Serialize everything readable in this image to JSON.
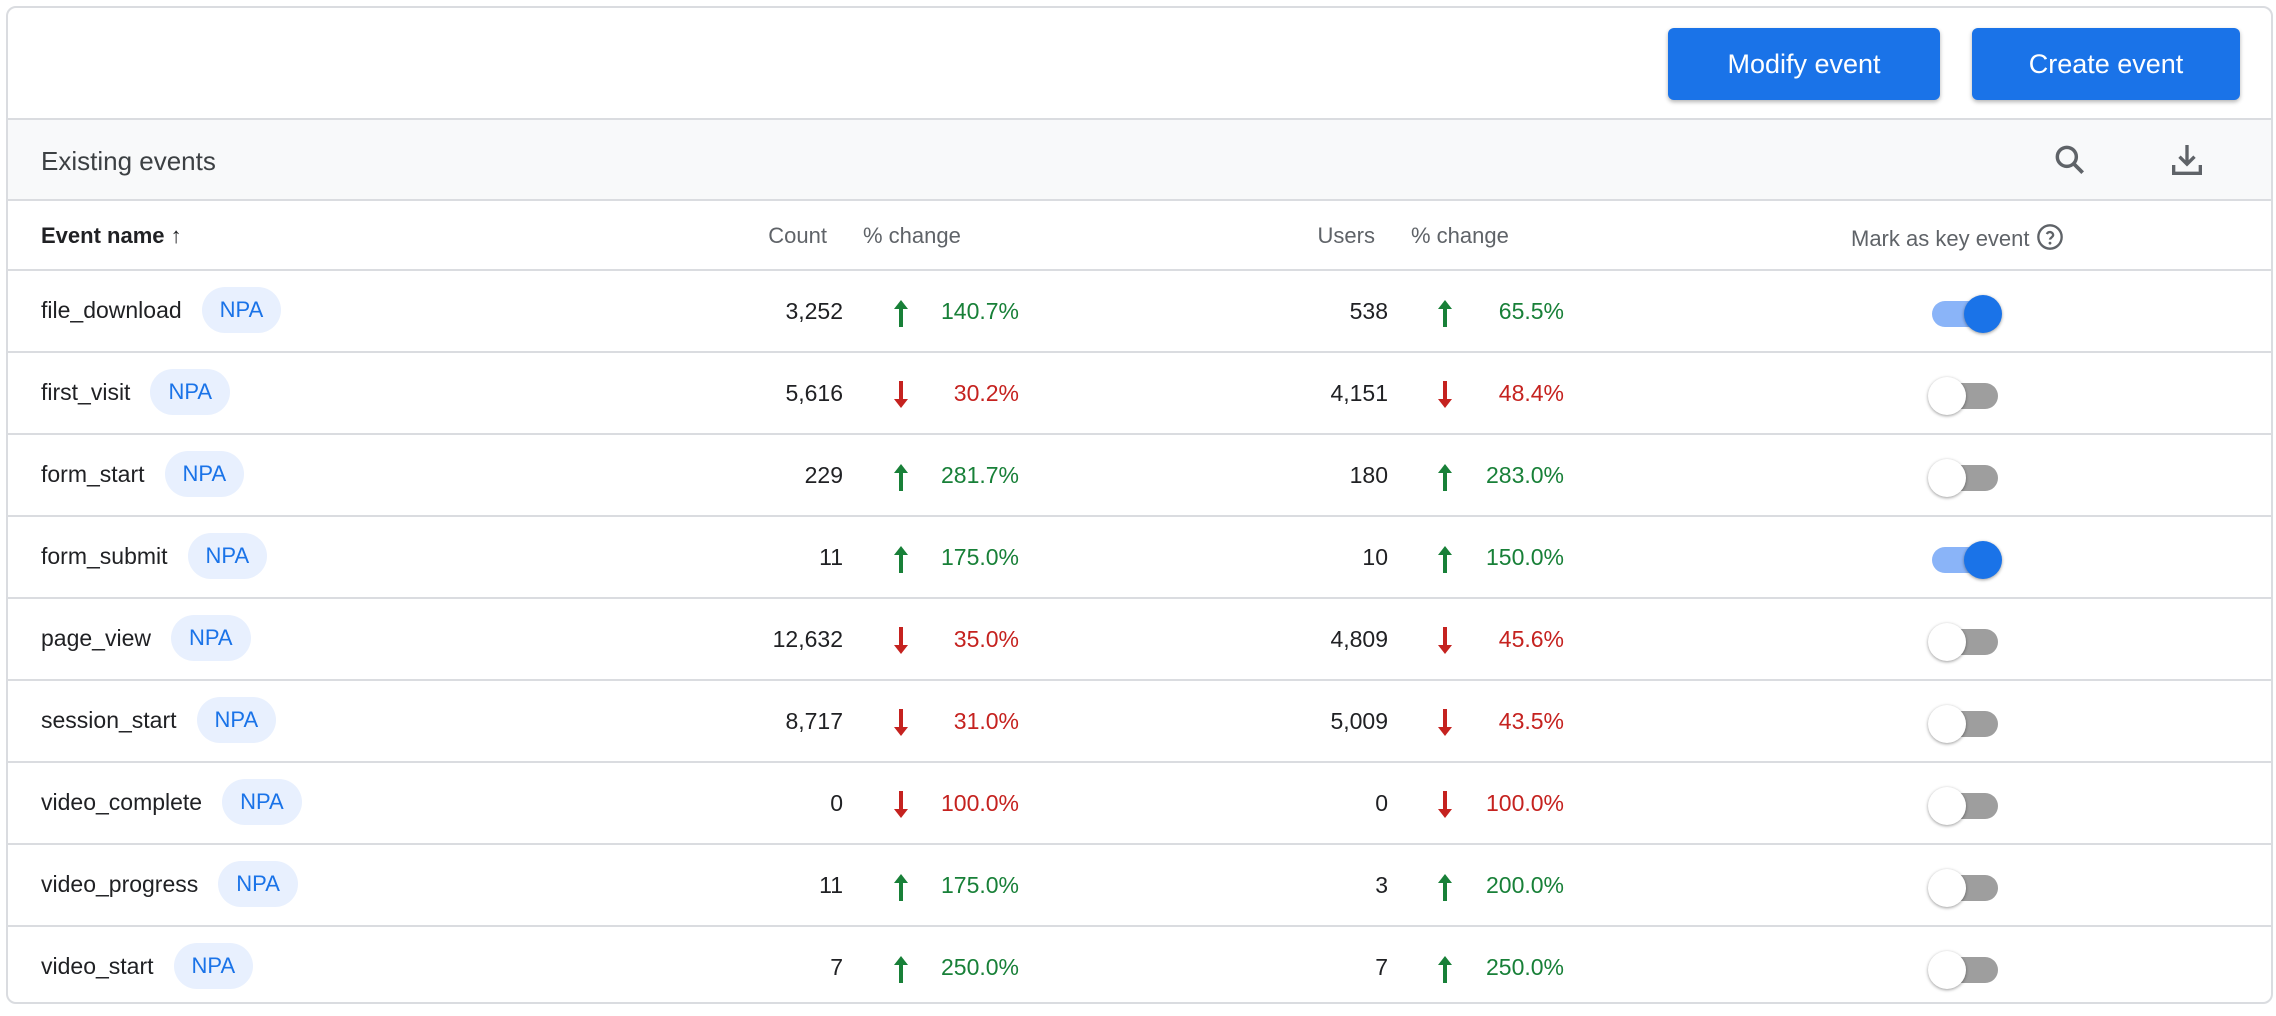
{
  "toolbar": {
    "modify_label": "Modify event",
    "create_label": "Create event"
  },
  "section": {
    "title": "Existing events"
  },
  "columns": {
    "event_name": "Event name",
    "count": "Count",
    "count_change": "% change",
    "users": "Users",
    "users_change": "% change",
    "key_event": "Mark as key event"
  },
  "colors": {
    "accent": "#1a73e8",
    "up": "#188038",
    "down": "#c5221f"
  },
  "rows": [
    {
      "name": "file_download",
      "badge": "NPA",
      "count": "3,252",
      "count_dir": "up",
      "count_change": "140.7%",
      "users": "538",
      "users_dir": "up",
      "users_change": "65.5%",
      "key_event": true
    },
    {
      "name": "first_visit",
      "badge": "NPA",
      "count": "5,616",
      "count_dir": "down",
      "count_change": "30.2%",
      "users": "4,151",
      "users_dir": "down",
      "users_change": "48.4%",
      "key_event": false
    },
    {
      "name": "form_start",
      "badge": "NPA",
      "count": "229",
      "count_dir": "up",
      "count_change": "281.7%",
      "users": "180",
      "users_dir": "up",
      "users_change": "283.0%",
      "key_event": false
    },
    {
      "name": "form_submit",
      "badge": "NPA",
      "count": "11",
      "count_dir": "up",
      "count_change": "175.0%",
      "users": "10",
      "users_dir": "up",
      "users_change": "150.0%",
      "key_event": true
    },
    {
      "name": "page_view",
      "badge": "NPA",
      "count": "12,632",
      "count_dir": "down",
      "count_change": "35.0%",
      "users": "4,809",
      "users_dir": "down",
      "users_change": "45.6%",
      "key_event": false
    },
    {
      "name": "session_start",
      "badge": "NPA",
      "count": "8,717",
      "count_dir": "down",
      "count_change": "31.0%",
      "users": "5,009",
      "users_dir": "down",
      "users_change": "43.5%",
      "key_event": false
    },
    {
      "name": "video_complete",
      "badge": "NPA",
      "count": "0",
      "count_dir": "down",
      "count_change": "100.0%",
      "users": "0",
      "users_dir": "down",
      "users_change": "100.0%",
      "key_event": false
    },
    {
      "name": "video_progress",
      "badge": "NPA",
      "count": "11",
      "count_dir": "up",
      "count_change": "175.0%",
      "users": "3",
      "users_dir": "up",
      "users_change": "200.0%",
      "key_event": false
    },
    {
      "name": "video_start",
      "badge": "NPA",
      "count": "7",
      "count_dir": "up",
      "count_change": "250.0%",
      "users": "7",
      "users_dir": "up",
      "users_change": "250.0%",
      "key_event": false
    }
  ]
}
